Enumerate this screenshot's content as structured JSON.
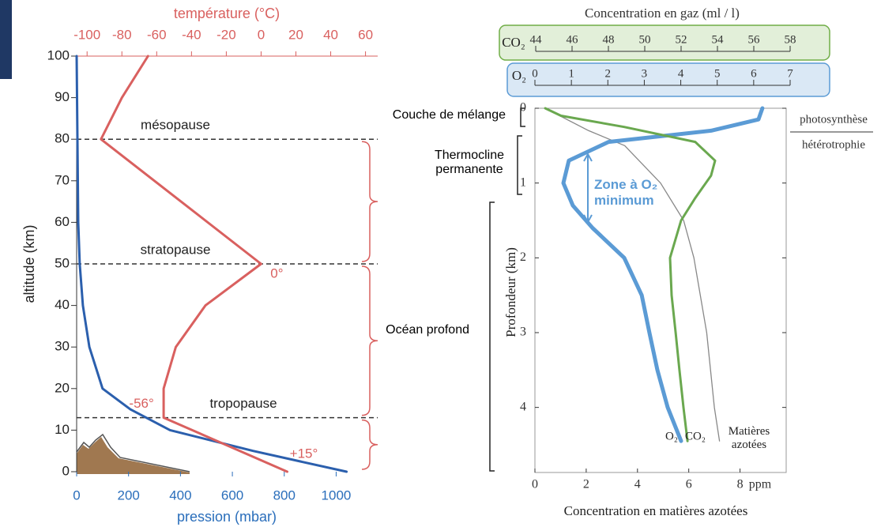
{
  "chart_data": [
    {
      "type": "line",
      "xlabel": "pression (mbar)",
      "xlim": [
        0,
        1160
      ],
      "xticks": [
        0,
        200,
        400,
        600,
        800,
        1000
      ],
      "x2label": "température (°C)",
      "x2lim": [
        -106,
        67
      ],
      "x2ticks": [
        -100,
        -80,
        -60,
        -40,
        -20,
        0,
        20,
        40,
        60
      ],
      "ylabel": "altitude (km)",
      "ylim": [
        0,
        100
      ],
      "yticks": [
        0,
        10,
        20,
        30,
        40,
        50,
        60,
        70,
        80,
        90,
        100
      ],
      "hlines": [
        {
          "value": 80,
          "label": "mésopause"
        },
        {
          "value": 50,
          "label": "stratopause"
        },
        {
          "value": 13,
          "label": "tropopause"
        }
      ],
      "series": [
        {
          "color": "#2b5fad",
          "x": [
            1040,
            860,
            680,
            360,
            207,
            100,
            49,
            24,
            12,
            6,
            3,
            0
          ],
          "y": [
            0,
            2.5,
            5,
            10,
            15,
            20,
            30,
            40,
            50,
            60,
            80,
            100
          ]
        },
        {
          "color": "#d9605f",
          "axis": "x2",
          "x": [
            15,
            -56,
            -56,
            -49,
            -32,
            0,
            -92,
            -80,
            -65
          ],
          "y": [
            0,
            13,
            20,
            30,
            40,
            50,
            80,
            90,
            100
          ],
          "value_labels": [
            "+15°",
            "-56°",
            null,
            null,
            null,
            "0°",
            null,
            null,
            null
          ]
        }
      ]
    },
    {
      "type": "line",
      "xlabel": "Concentration en matières azotées",
      "xunit": "ppm",
      "xlim": [
        0,
        9.8
      ],
      "xticks": [
        0,
        2,
        4,
        6,
        8
      ],
      "x2title": "Concentration en gaz (ml / l)",
      "x2label": "CO₂",
      "x2lim": [
        44,
        58
      ],
      "x2ticks": [
        44,
        46,
        48,
        50,
        52,
        54,
        56,
        58
      ],
      "x3label": "O₂",
      "x3lim": [
        0,
        7
      ],
      "x3ticks": [
        0,
        1,
        2,
        3,
        4,
        5,
        6,
        7
      ],
      "ylabel": "Profondeur (km)",
      "ylim": [
        0,
        4.87
      ],
      "yticks": [
        0,
        1,
        2,
        3,
        4
      ],
      "y_inverted": true,
      "zones": [
        "Couche de mélange",
        "Thermocline permanente",
        "Océan profond"
      ],
      "annotations": [
        "photosynthèse",
        "hétérotrophie",
        "Zone à O₂ minimum"
      ],
      "series": [
        {
          "name": "Matières azotées",
          "color": "#888888",
          "x": [
            0.4,
            2.1,
            3.5,
            4.9,
            5.8,
            6.2,
            6.7,
            7.0,
            7.2
          ],
          "y": [
            0,
            0.3,
            0.5,
            1.0,
            1.5,
            2.0,
            3.0,
            4.0,
            4.45
          ]
        },
        {
          "name": "O₂",
          "color": "#5b9bd5",
          "axis": "x3",
          "x": [
            6.24,
            6.13,
            4.83,
            2.02,
            0.93,
            0.78,
            1.04,
            1.58,
            2.45,
            2.93,
            3.14,
            3.36,
            3.64,
            4.01
          ],
          "y": [
            0,
            0.15,
            0.3,
            0.45,
            0.7,
            1.0,
            1.3,
            1.6,
            2.0,
            2.5,
            3.0,
            3.5,
            4.0,
            4.45
          ]
        },
        {
          "name": "CO₂",
          "color": "#6aa84f",
          "axis": "x2",
          "x": [
            44.52,
            45.39,
            48.87,
            52.78,
            53.87,
            53.65,
            52.78,
            52.0,
            51.39,
            51.48,
            51.7,
            51.91,
            52.13,
            52.35
          ],
          "y": [
            0,
            0.1,
            0.25,
            0.45,
            0.7,
            0.9,
            1.2,
            1.5,
            2.0,
            2.5,
            3.0,
            3.5,
            4.0,
            4.45
          ]
        }
      ]
    }
  ]
}
